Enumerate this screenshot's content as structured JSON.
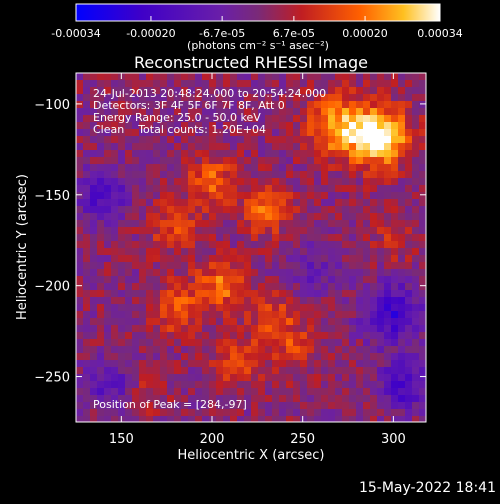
{
  "chart_data": {
    "type": "heatmap",
    "title": "Reconstructed RHESSI Image",
    "xlabel": "Heliocentric X (arcsec)",
    "ylabel": "Heliocentric Y (arcsec)",
    "xlim": [
      125,
      318
    ],
    "ylim": [
      -275,
      -83
    ],
    "xticks": [
      150,
      200,
      250,
      300
    ],
    "yticks": [
      -100,
      -150,
      -200,
      -250
    ],
    "colorbar": {
      "ticks": [
        -0.00034,
        -0.0002,
        -6.7e-05,
        6.7e-05,
        0.0002,
        0.00034
      ],
      "tick_labels": [
        "-0.00034",
        "-0.00020",
        "-6.7e-05",
        "6.7e-05",
        "0.00020",
        "0.00034"
      ],
      "range": [
        -0.00034,
        0.00034
      ],
      "unit_label": "(photons cm⁻² s⁻¹ asec⁻²)"
    },
    "annotations": [
      "24-Jul-2013 20:48:24.000 to 20:54:24.000",
      "Detectors: 3F 4F 5F 6F 7F 8F, Att 0",
      "Energy Range: 25.0 - 50.0 keV",
      "Clean    Total counts: 1.20E+04"
    ],
    "peak_label": "Position of Peak = [284,-97]",
    "peak": {
      "x": 284,
      "y": -97
    },
    "bright_sources": [
      {
        "x": 292,
        "y": -118,
        "amp": 0.00034
      },
      {
        "x": 268,
        "y": -112,
        "amp": 0.00024
      },
      {
        "x": 200,
        "y": -142,
        "amp": 0.00016
      },
      {
        "x": 230,
        "y": -158,
        "amp": 0.00018
      },
      {
        "x": 180,
        "y": -168,
        "amp": 0.00014
      },
      {
        "x": 205,
        "y": -200,
        "amp": 0.00018
      },
      {
        "x": 180,
        "y": -212,
        "amp": 0.00016
      },
      {
        "x": 235,
        "y": -218,
        "amp": 0.00012
      },
      {
        "x": 215,
        "y": -242,
        "amp": 0.00014
      },
      {
        "x": 245,
        "y": -235,
        "amp": 0.0001
      },
      {
        "x": 160,
        "y": -258,
        "amp": 8e-05
      },
      {
        "x": 300,
        "y": -175,
        "amp": 7e-05
      }
    ],
    "dim_sources": [
      {
        "x": 140,
        "y": -150,
        "amp": -0.00018
      },
      {
        "x": 145,
        "y": -255,
        "amp": -0.00016
      },
      {
        "x": 300,
        "y": -215,
        "amp": -0.00022
      },
      {
        "x": 305,
        "y": -255,
        "amp": -0.0002
      },
      {
        "x": 255,
        "y": -190,
        "amp": -0.0001
      }
    ],
    "grid": false
  },
  "footer": {
    "date": "15-May-2022 18:41"
  }
}
